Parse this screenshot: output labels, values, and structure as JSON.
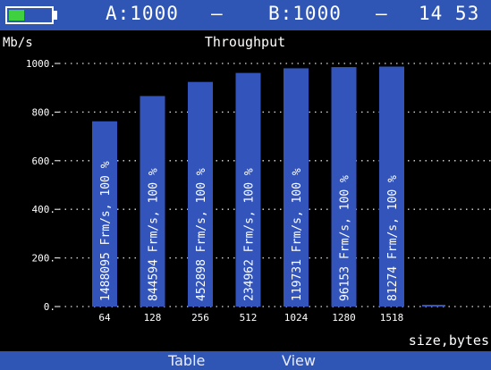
{
  "status": {
    "port_a": "A:1000",
    "port_b": "B:1000",
    "separator": "–",
    "time": "14 53",
    "battery_level": 0.35
  },
  "menu": {
    "items": [
      "Table",
      "View"
    ]
  },
  "chart_data": {
    "type": "bar",
    "title": "Throughput",
    "ylabel": "Mb/s",
    "xlabel": "size,bytes",
    "ylim": [
      0,
      1000
    ],
    "yticks": [
      "0.",
      "200.",
      "400.",
      "600.",
      "800.",
      "1000."
    ],
    "grid": true,
    "categories": [
      "64",
      "128",
      "256",
      "512",
      "1024",
      "1280",
      "1518"
    ],
    "values": [
      762,
      866,
      924,
      961,
      980,
      985,
      987
    ],
    "frames": [
      "1488095",
      "844594",
      "452898",
      "234962",
      "119731",
      "96153",
      "81274"
    ],
    "unit_label": "Frm/s, 100 %",
    "bar_color": "#3355bb"
  }
}
